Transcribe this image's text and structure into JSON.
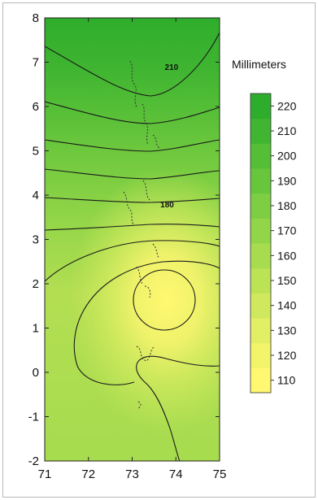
{
  "chart_data": {
    "type": "heatmap",
    "title": "",
    "xlabel": "",
    "ylabel": "",
    "xlim": [
      71,
      75
    ],
    "ylim": [
      -2,
      8
    ],
    "x_ticks": [
      "71",
      "72",
      "73",
      "74",
      "75"
    ],
    "y_ticks": [
      "-2",
      "-1",
      "0",
      "1",
      "2",
      "3",
      "4",
      "5",
      "6",
      "7",
      "8"
    ],
    "colorbar": {
      "title": "Millimeters",
      "levels": [
        110,
        120,
        130,
        140,
        150,
        160,
        170,
        180,
        190,
        200,
        210,
        220
      ],
      "tick_labels": [
        "110",
        "120",
        "130",
        "140",
        "150",
        "160",
        "170",
        "180",
        "190",
        "200",
        "210",
        "220"
      ],
      "colors": [
        "#fff870",
        "#f2f46a",
        "#e2ee64",
        "#cfe85d",
        "#bce256",
        "#a7dc4f",
        "#92d548",
        "#7dce42",
        "#68c63c",
        "#53be36",
        "#40b531",
        "#2ead2c"
      ]
    },
    "contour_labels": [
      {
        "text": "210",
        "x": 73.9,
        "y": 6.9
      },
      {
        "text": "180",
        "x": 73.8,
        "y": 3.8
      }
    ]
  }
}
